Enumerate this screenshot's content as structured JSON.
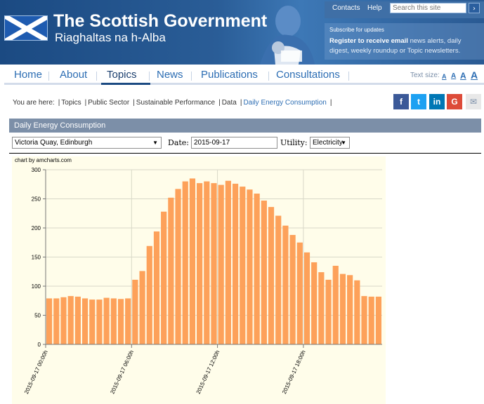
{
  "header": {
    "title": "The Scottish Government",
    "subtitle": "Riaghaltas na h-Alba",
    "top_links": [
      "Contacts",
      "Help"
    ],
    "search_placeholder": "Search this site",
    "search_go": "›",
    "subscribe_title": "Subscribe for updates",
    "subscribe_link": "Register to receive email",
    "subscribe_text": " news alerts, daily digest, weekly roundup or Topic newsletters.",
    "brand_color": "#1b4a82"
  },
  "nav": {
    "items": [
      "Home",
      "About",
      "Topics",
      "News",
      "Publications",
      "Consultations"
    ],
    "active": "Topics",
    "text_size_label": "Text size:",
    "text_sizes": [
      "A",
      "A",
      "A",
      "A"
    ]
  },
  "breadcrumb": {
    "label": "You are here:",
    "items": [
      "Topics",
      "Public Sector",
      "Sustainable Performance",
      "Data",
      "Daily Energy Consumption"
    ]
  },
  "share": [
    {
      "icon": "facebook-icon",
      "glyph": "f",
      "color": "#3b5998"
    },
    {
      "icon": "twitter-icon",
      "glyph": "t",
      "color": "#1da1f2"
    },
    {
      "icon": "linkedin-icon",
      "glyph": "in",
      "color": "#0077b5"
    },
    {
      "icon": "google-plus-icon",
      "glyph": "G",
      "color": "#dd4b39"
    },
    {
      "icon": "email-icon",
      "glyph": "✉",
      "color": "#e8e8e8"
    }
  ],
  "panel": {
    "title": "Daily Energy Consumption",
    "location": "Victoria Quay, Edinburgh",
    "date_label": "Date:",
    "date_value": "2015-09-17",
    "utility_label": "Utility:",
    "utility_value": "Electricity"
  },
  "chart_data": {
    "type": "bar",
    "credit": "chart by amcharts.com",
    "ylim": [
      0,
      300
    ],
    "yticks": [
      0,
      50,
      100,
      150,
      200,
      250,
      300
    ],
    "bar_color": "#fda15a",
    "grid": true,
    "xtick_labels": [
      "2015-09-17 00:00h",
      "2015-09-17 06:00h",
      "2015-09-17 12:00h",
      "2015-09-17 18:00h"
    ],
    "xtick_indices": [
      0,
      12,
      24,
      36
    ],
    "values": [
      79,
      79,
      81,
      83,
      82,
      79,
      77,
      77,
      80,
      79,
      78,
      79,
      111,
      126,
      169,
      194,
      228,
      252,
      267,
      280,
      285,
      277,
      280,
      277,
      274,
      281,
      276,
      271,
      266,
      259,
      247,
      236,
      221,
      204,
      188,
      175,
      158,
      141,
      124,
      111,
      135,
      121,
      119,
      110,
      83,
      82,
      82
    ]
  }
}
